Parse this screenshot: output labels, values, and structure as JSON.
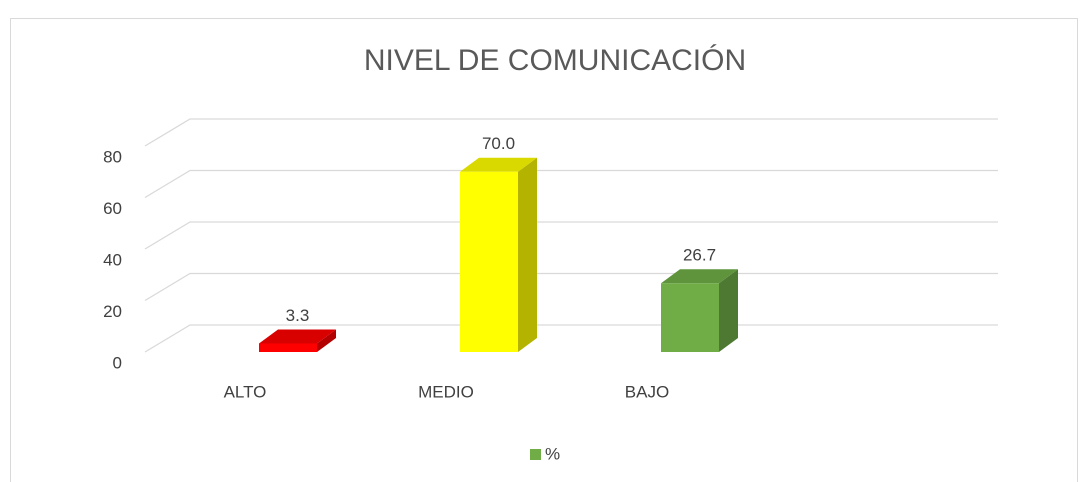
{
  "chart_data": {
    "type": "bar3d",
    "title": "NIVEL DE COMUNICACIÓN",
    "categories": [
      "ALTO",
      "MEDIO",
      "BAJO"
    ],
    "series": [
      {
        "name": "%",
        "color": "#70ad47",
        "colors": [
          "#ff0000",
          "#ffff00",
          "#70ad47"
        ],
        "values": [
          3.3,
          70,
          26.7
        ],
        "value_labels": [
          "3.3",
          "70.0",
          "26.7"
        ]
      }
    ],
    "ylim": [
      0,
      80
    ],
    "yticks": [
      0,
      20,
      40,
      60,
      80
    ],
    "grid": true,
    "legend": "bottom"
  }
}
